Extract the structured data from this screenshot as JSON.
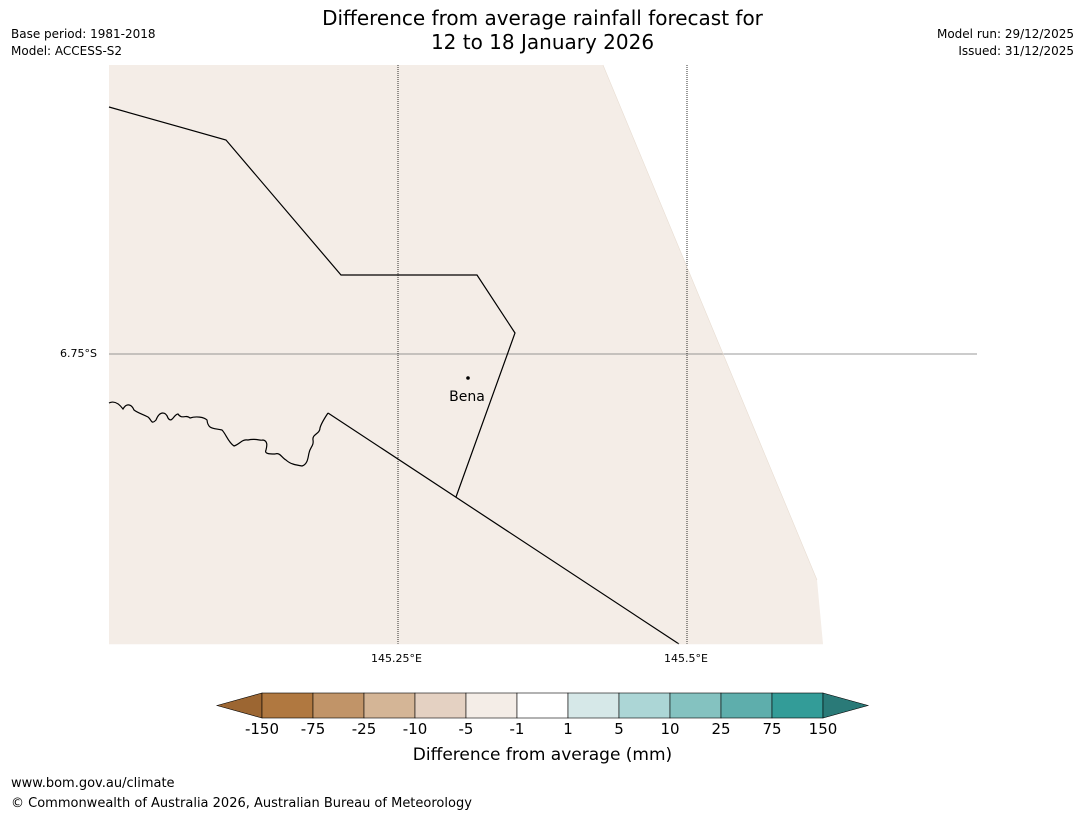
{
  "header": {
    "title_line1": "Difference from average rainfall forecast for",
    "title_line2": "12 to 18 January 2026",
    "base_period": "Base period: 1981-2018",
    "model": "Model: ACCESS-S2",
    "model_run": "Model run: 29/12/2025",
    "issued": "Issued: 31/12/2025"
  },
  "map": {
    "lat_label": "6.75°S",
    "lon_labels": [
      "145.25°E",
      "145.5°E"
    ],
    "place_name": "Bena",
    "land_color": "#f4ede7"
  },
  "colorbar": {
    "label": "Difference from average (mm)",
    "ticks": [
      "-150",
      "-75",
      "-25",
      "-10",
      "-5",
      "-1",
      "1",
      "5",
      "10",
      "25",
      "75",
      "150"
    ],
    "colors": [
      "#9c6632",
      "#b07840",
      "#c19468",
      "#d4b596",
      "#e4d1c2",
      "#f4ede7",
      "#ffffff",
      "#d6e8e8",
      "#acd6d6",
      "#84c2c0",
      "#5eaeac",
      "#339c98",
      "#2a7a78"
    ]
  },
  "footer": {
    "url": "www.bom.gov.au/climate",
    "copyright": "© Commonwealth of Australia 2026, Australian Bureau of Meteorology"
  }
}
